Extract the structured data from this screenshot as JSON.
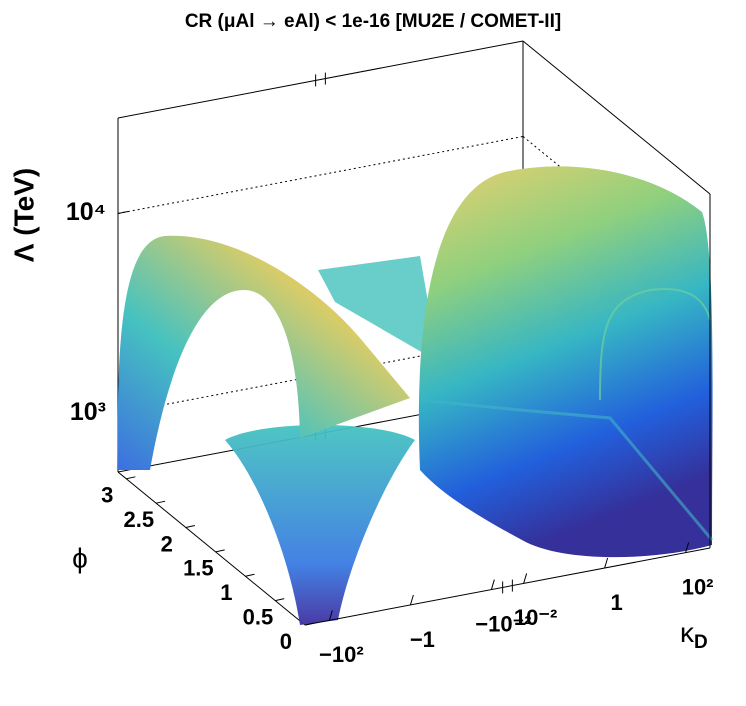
{
  "chart_data": {
    "type": "surface3d",
    "title": "CR (μAl  → eAl) < 1e-16  [MU2E / COMET-II]",
    "zlabel": "Λ (TeV)",
    "ylabel": "ϕ",
    "xlabel": {
      "symbol": "κ",
      "subscript": "D"
    },
    "zscale": "log",
    "zlim": [
      510,
      30000
    ],
    "zticks": [
      {
        "value": 1000,
        "label": "10³"
      },
      {
        "value": 10000,
        "label": "10⁴"
      }
    ],
    "ylim": [
      0,
      3.14
    ],
    "yticks": [
      0,
      0.5,
      1,
      1.5,
      2,
      2.5,
      3
    ],
    "xscale": "symlog",
    "xlinthresh": 0.004,
    "xlim": [
      -400,
      400
    ],
    "xticks": [
      {
        "value": -100,
        "label": "−10²"
      },
      {
        "value": -1,
        "label": "−1"
      },
      {
        "value": -0.01,
        "label": "−10⁻²"
      },
      {
        "value": 0.01,
        "label": "10⁻²"
      },
      {
        "value": 1,
        "label": "1"
      },
      {
        "value": 100,
        "label": "10²"
      }
    ],
    "grid": true
  }
}
